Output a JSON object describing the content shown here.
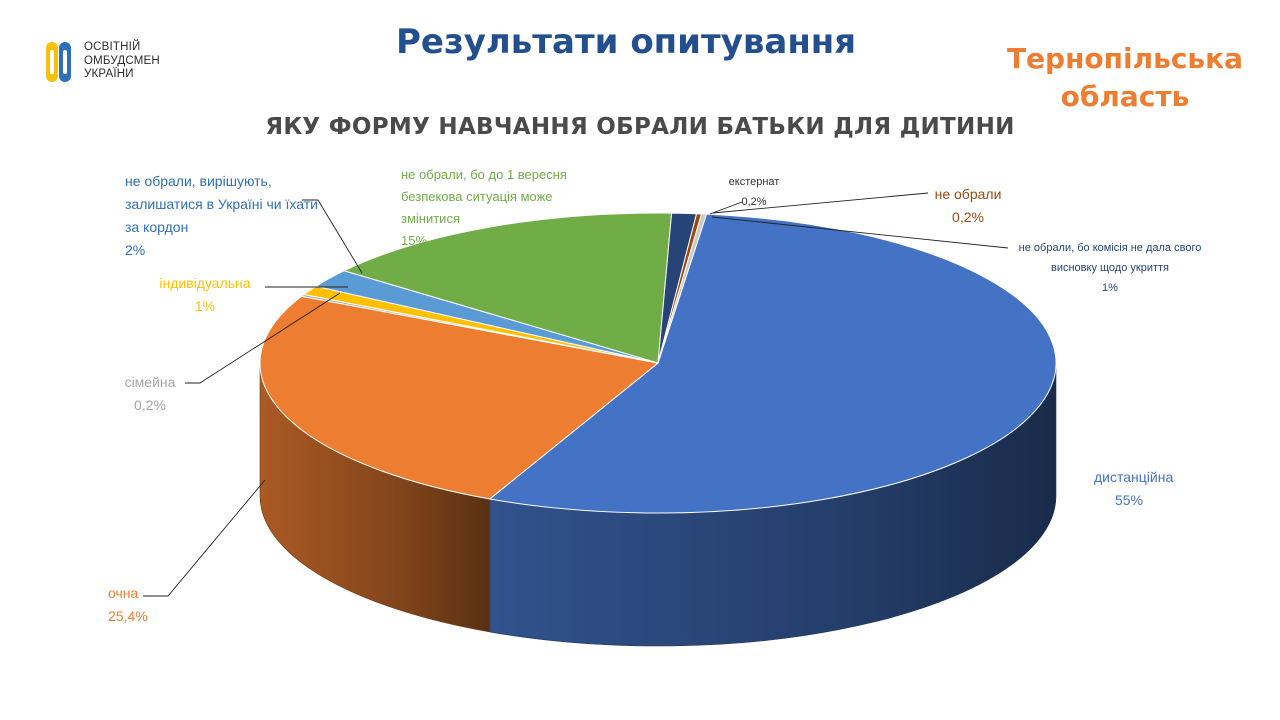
{
  "header": {
    "logo_lines": [
      "ОСВІТНІЙ",
      "ОМБУДСМЕН",
      "УКРАЇНИ"
    ],
    "page_title": "Результати опитування",
    "region_line1": "Тернопільська",
    "region_line2": "область"
  },
  "colors": {
    "title": "#244f8f",
    "region": "#ed7d31",
    "chart_title": "#4a4a4a"
  },
  "chart_data": {
    "type": "pie",
    "title": "ЯКУ ФОРМУ НАВЧАННЯ ОБРАЛИ БАТЬКИ ДЛЯ ДИТИНИ",
    "legend": "none",
    "slices": [
      {
        "label": "дистанційна",
        "value": 55,
        "value_text": "55%",
        "color": "#4472c4"
      },
      {
        "label": "очна",
        "value": 25.4,
        "value_text": "25,4%",
        "color": "#ed7d31"
      },
      {
        "label": "сімейна",
        "value": 0.2,
        "value_text": "0,2%",
        "color": "#a5a5a5"
      },
      {
        "label": "індивідуальна",
        "value": 1,
        "value_text": "1%",
        "color": "#ffc000"
      },
      {
        "label": "не обрали, вирішують, залишатися в Україні чи їхати за кордон",
        "value": 2,
        "value_text": "2%",
        "color": "#5b9bd5"
      },
      {
        "label": "не обрали, бо до 1 вересня безпекова ситуація може змінитися",
        "value": 15,
        "value_text": "15%",
        "color": "#70ad47"
      },
      {
        "label": "не обрали, бо комісія не дала свого висновку щодо укриття",
        "value": 1,
        "value_text": "1%",
        "color": "#264478"
      },
      {
        "label": "не обрали",
        "value": 0.2,
        "value_text": "0,2%",
        "color": "#9e480e"
      },
      {
        "label": "екстернат",
        "value": 0.2,
        "value_text": "0,2%",
        "color": "#c9c9c9"
      }
    ]
  }
}
